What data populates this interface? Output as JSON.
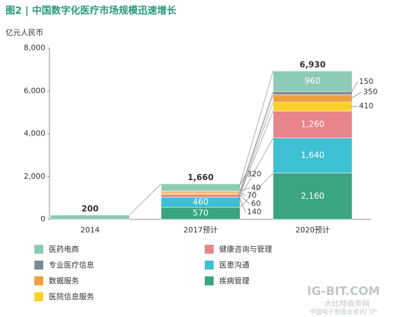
{
  "chart_data": {
    "type": "stacked_bar",
    "title": "图2 | 中国数字化医疗市场规模迅速增长",
    "y_label": "亿元人民币",
    "categories": [
      "2014",
      "2017预计",
      "2020预计"
    ],
    "totals": [
      200,
      1660,
      6930
    ],
    "total_labels": [
      "200",
      "1,660",
      "6,930"
    ],
    "series": [
      {
        "name": "疾病管理",
        "color": "#3aa57e",
        "values": [
          null,
          570,
          2160
        ],
        "value_labels": [
          null,
          "570",
          "2,160"
        ]
      },
      {
        "name": "医患沟通",
        "color": "#3cc0d2",
        "values": [
          null,
          460,
          1640
        ],
        "value_labels": [
          null,
          "460",
          "1,640"
        ]
      },
      {
        "name": "健康咨询与管理",
        "color": "#e8848c",
        "values": [
          null,
          140,
          1260
        ],
        "value_labels": [
          null,
          "140",
          "1,260"
        ]
      },
      {
        "name": "医院信息服务",
        "color": "#fcd02a",
        "values": [
          null,
          60,
          410
        ],
        "value_labels": [
          null,
          "60",
          "410"
        ]
      },
      {
        "name": "数据服务",
        "color": "#f0a040",
        "values": [
          null,
          70,
          350
        ],
        "value_labels": [
          null,
          "70",
          "350"
        ]
      },
      {
        "name": "专业医疗信息",
        "color": "#7b8a94",
        "values": [
          null,
          40,
          150
        ],
        "value_labels": [
          null,
          "40",
          "150"
        ]
      },
      {
        "name": "医药电商",
        "color": "#8dcbb5",
        "values": [
          200,
          320,
          960
        ],
        "value_labels": [
          null,
          "320",
          "960"
        ]
      }
    ],
    "ylim": [
      0,
      8000
    ],
    "yticks": [
      0,
      {
        "value": 2000,
        "label": "2,000"
      },
      {
        "value": 4000,
        "label": "4,000"
      },
      {
        "value": 6000,
        "label": "6,000"
      },
      {
        "value": 8000,
        "label": "8,000"
      }
    ],
    "watermark": [
      "IG-BIT.COM",
      "大比特商务网",
      "中国电子制造业资讯门户"
    ]
  }
}
